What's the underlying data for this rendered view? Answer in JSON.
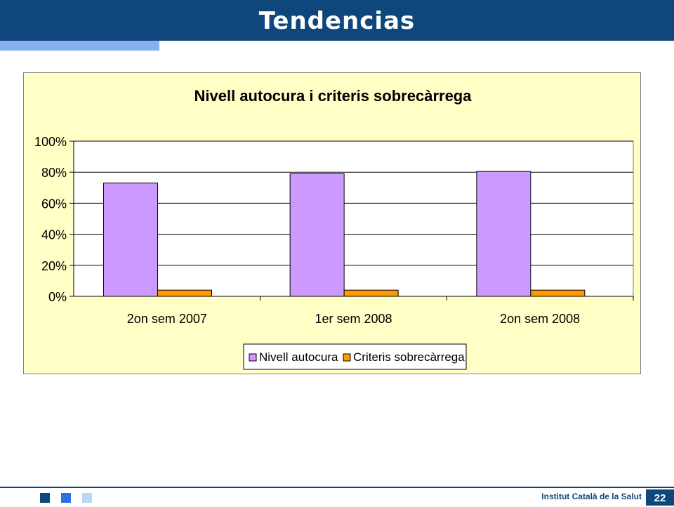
{
  "slide": {
    "title": "Tendencias",
    "institution": "Institut Català de la Salut",
    "page_number": "22"
  },
  "colors": {
    "header": "#0f467c",
    "accent": "#86b1ee",
    "plot_bg": "#ffffc6",
    "series_1": "#cc99ff",
    "series_2": "#ff9900"
  },
  "chart_data": {
    "type": "bar",
    "title": "Nivell autocura i criteris sobrecàrrega",
    "categories": [
      "2on sem 2007",
      "1er sem 2008",
      "2on sem 2008"
    ],
    "series": [
      {
        "name": "Nivell autocura",
        "values": [
          73,
          79,
          80.5
        ]
      },
      {
        "name": "Criteris sobrecàrrega",
        "values": [
          4,
          4,
          4
        ]
      }
    ],
    "y_ticks": [
      "0%",
      "20%",
      "40%",
      "60%",
      "80%",
      "100%"
    ],
    "ylim": [
      0,
      100
    ],
    "grid": true,
    "legend_position": "bottom"
  }
}
